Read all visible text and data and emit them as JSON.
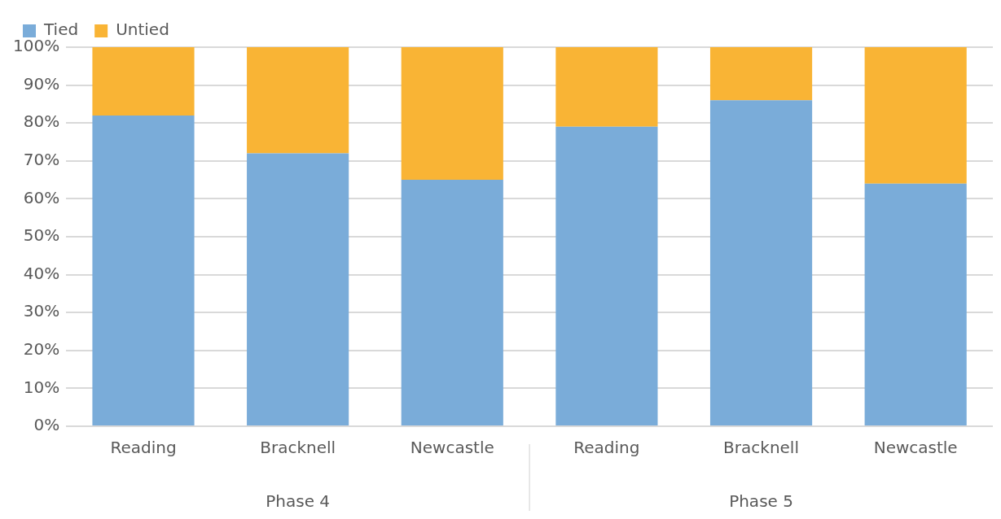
{
  "chart_data": {
    "type": "bar",
    "stacked": true,
    "categories": [
      "Reading",
      "Bracknell",
      "Newcastle",
      "Reading",
      "Bracknell",
      "Newcastle"
    ],
    "series": [
      {
        "name": "Tied",
        "color": "#7aacd9",
        "values": [
          82,
          72,
          65,
          79,
          86,
          64
        ]
      },
      {
        "name": "Untied",
        "color": "#f9b435",
        "values": [
          18,
          28,
          35,
          21,
          14,
          36
        ]
      }
    ],
    "ylim": [
      0,
      100
    ],
    "yticks": [
      {
        "value": 0,
        "label": "0%"
      },
      {
        "value": 10,
        "label": "10%"
      },
      {
        "value": 20,
        "label": "20%"
      },
      {
        "value": 30,
        "label": "30%"
      },
      {
        "value": 40,
        "label": "40%"
      },
      {
        "value": 50,
        "label": "50%"
      },
      {
        "value": 60,
        "label": "60%"
      },
      {
        "value": 70,
        "label": "70%"
      },
      {
        "value": 80,
        "label": "80%"
      },
      {
        "value": 90,
        "label": "90%"
      },
      {
        "value": 100,
        "label": "100%"
      }
    ],
    "grid": "y",
    "legend": "top left",
    "annotations": [
      "Phase 4",
      "Phase 5"
    ]
  }
}
